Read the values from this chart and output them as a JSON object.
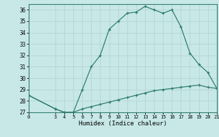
{
  "title": "",
  "xlabel": "Humidex (Indice chaleur)",
  "ylabel": "",
  "background_color": "#c8e8e8",
  "grid_color": "#b8d8d8",
  "line_color": "#2e7b6e",
  "xlim": [
    0,
    21
  ],
  "ylim": [
    27,
    36.5
  ],
  "xticks": [
    0,
    3,
    4,
    5,
    6,
    7,
    8,
    9,
    10,
    11,
    12,
    13,
    14,
    15,
    16,
    17,
    18,
    19,
    20,
    21
  ],
  "yticks": [
    27,
    28,
    29,
    30,
    31,
    32,
    33,
    34,
    35,
    36
  ],
  "upper_x": [
    0,
    3,
    4,
    5,
    6,
    7,
    8,
    9,
    10,
    11,
    12,
    13,
    14,
    15,
    16,
    17,
    18,
    19,
    20,
    21
  ],
  "upper_y": [
    28.5,
    27.3,
    27.0,
    27.0,
    29.0,
    31.0,
    32.0,
    34.3,
    35.0,
    35.7,
    35.8,
    36.3,
    36.0,
    35.7,
    36.0,
    34.5,
    32.2,
    31.2,
    30.5,
    29.1
  ],
  "lower_x": [
    0,
    3,
    4,
    5,
    6,
    7,
    8,
    9,
    10,
    11,
    12,
    13,
    14,
    15,
    16,
    17,
    18,
    19,
    20,
    21
  ],
  "lower_y": [
    28.5,
    27.3,
    27.0,
    27.0,
    27.3,
    27.5,
    27.7,
    27.9,
    28.1,
    28.3,
    28.5,
    28.7,
    28.9,
    29.0,
    29.1,
    29.2,
    29.3,
    29.4,
    29.2,
    29.1
  ]
}
